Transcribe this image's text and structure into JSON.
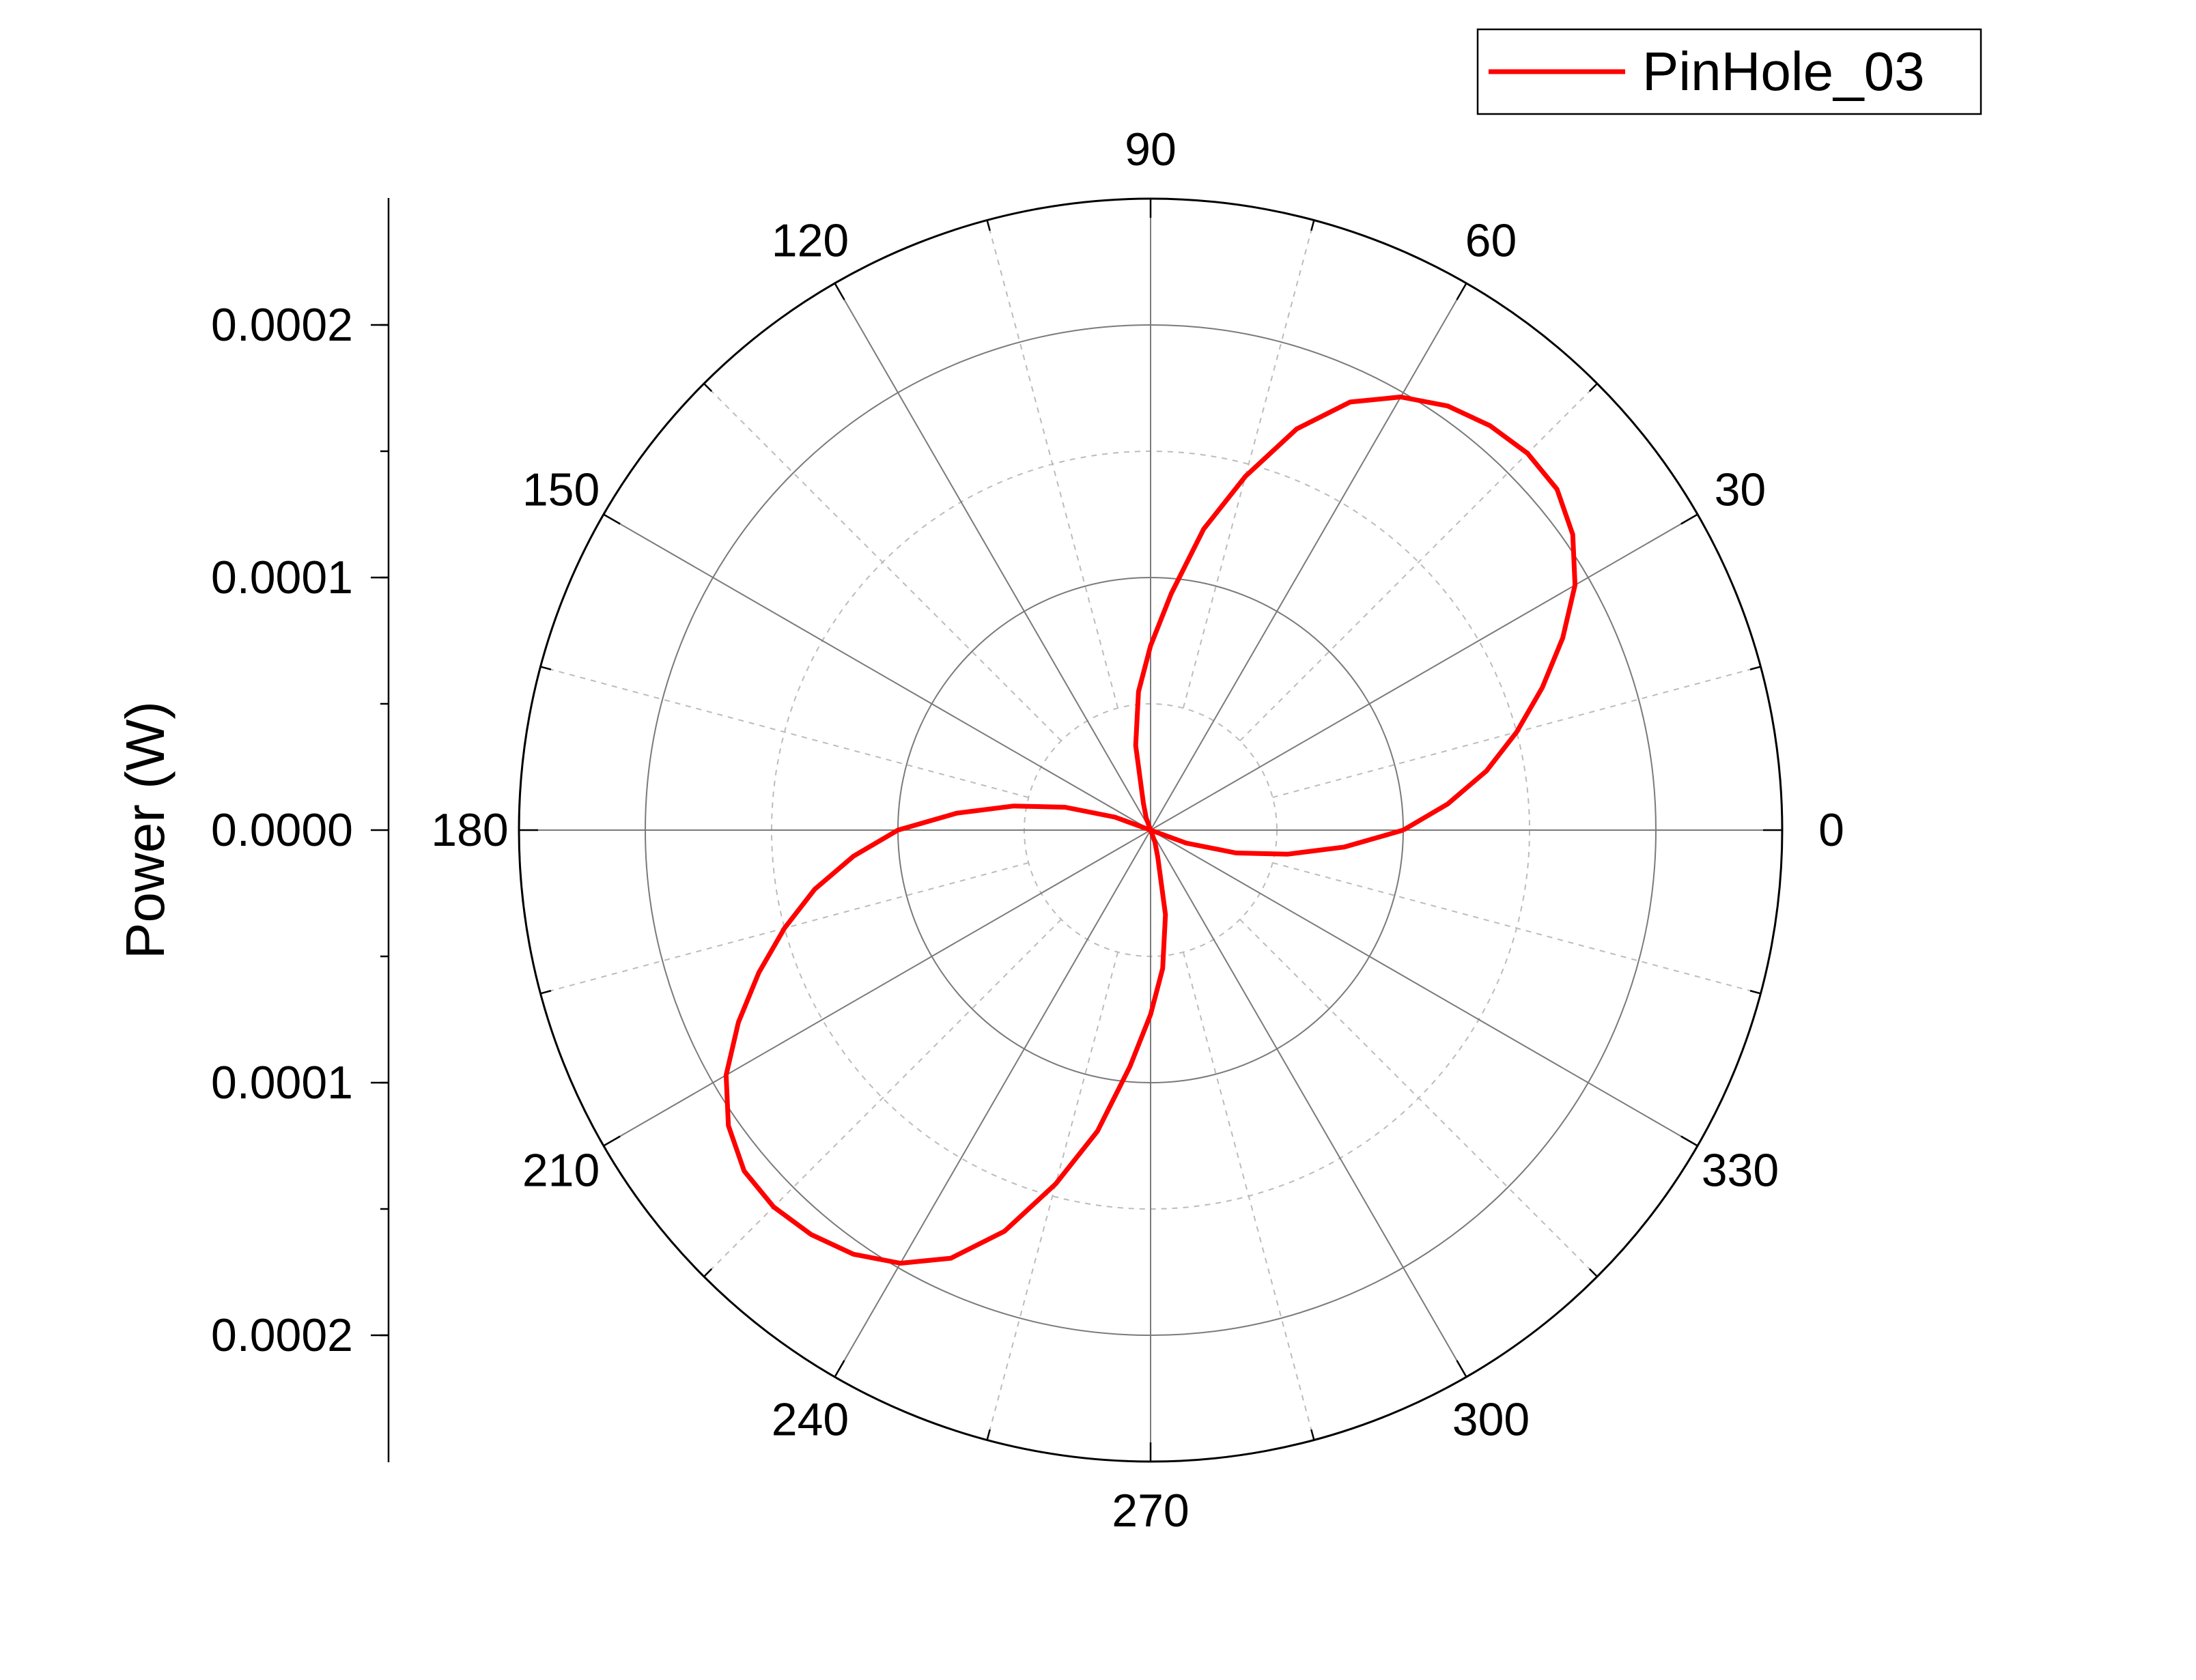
{
  "chart_data": {
    "type": "line",
    "subtype": "polar",
    "title": "",
    "ylabel": "Power (W)",
    "radial_axis": {
      "min": 0.0,
      "max": 0.00025,
      "major_ticks": [
        0.0,
        0.0001,
        0.0002
      ],
      "tick_labels": [
        "0.0000",
        "0.0001",
        "0.0002"
      ],
      "minor_step": 5e-05
    },
    "angle_ticks": [
      0,
      30,
      60,
      90,
      120,
      150,
      180,
      210,
      240,
      270,
      300,
      330
    ],
    "angle_labels": [
      "0",
      "30",
      "60",
      "90",
      "120",
      "150",
      "180",
      "210",
      "240",
      "270",
      "300",
      "330"
    ],
    "grid": true,
    "legend_position": "top-right",
    "series": [
      {
        "name": "PinHole_03",
        "color": "#ff0000",
        "theta": [
          0,
          5,
          10,
          15,
          20,
          25,
          30,
          35,
          40,
          45,
          50,
          55,
          60,
          65,
          70,
          75,
          80,
          85,
          90,
          95,
          100,
          105,
          110,
          115,
          120,
          125,
          130,
          135,
          140,
          145,
          150,
          155,
          160,
          165,
          170,
          175,
          180,
          185,
          190,
          195,
          200,
          205,
          210,
          215,
          220,
          225,
          230,
          235,
          240,
          245,
          250,
          255,
          260,
          265,
          270,
          275,
          280,
          285,
          290,
          295,
          300,
          305,
          310,
          315,
          320,
          325,
          330,
          335,
          340,
          345,
          350,
          355,
          360
        ],
        "r": [
          0.0001,
          0.000118,
          0.000135,
          0.00015,
          0.000165,
          0.00018,
          0.000194,
          0.000204,
          0.00021,
          0.000211,
          0.000209,
          0.000205,
          0.000198,
          0.000187,
          0.000169,
          0.000145,
          0.000121,
          9.4e-05,
          7.3e-05,
          5.5e-05,
          3.4e-05,
          1.1e-05,
          5e-06,
          0.0,
          0.0,
          0.0,
          0.0,
          0.0,
          0.0,
          0.0,
          0.0,
          0.0,
          1.5e-05,
          3.5e-05,
          5.5e-05,
          7.7e-05,
          0.0001,
          0.000118,
          0.000135,
          0.00015,
          0.000165,
          0.00018,
          0.000194,
          0.000204,
          0.00021,
          0.000211,
          0.000209,
          0.000205,
          0.000198,
          0.000187,
          0.000169,
          0.000145,
          0.000121,
          9.4e-05,
          7.3e-05,
          5.5e-05,
          3.4e-05,
          1.1e-05,
          5e-06,
          0.0,
          0.0,
          0.0,
          0.0,
          0.0,
          0.0,
          0.0,
          0.0,
          0.0,
          1.5e-05,
          3.5e-05,
          5.5e-05,
          7.7e-05,
          0.0001
        ]
      }
    ]
  }
}
